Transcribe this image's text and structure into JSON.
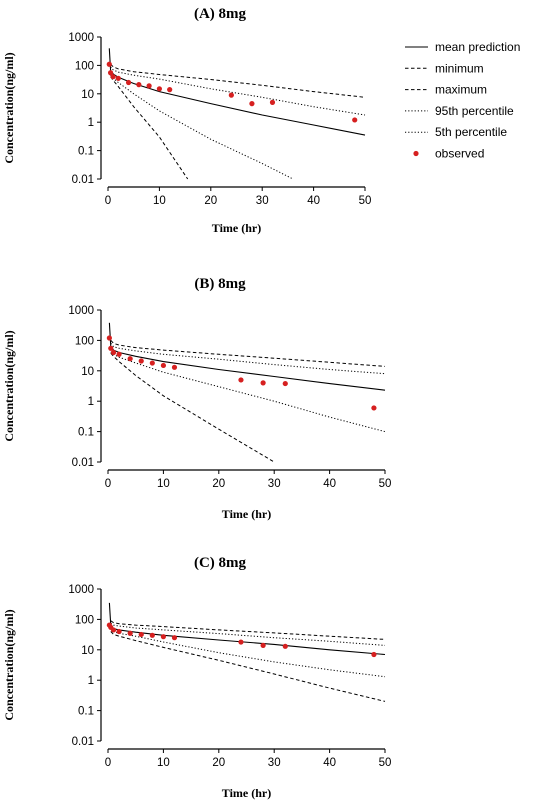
{
  "colors": {
    "observed": "#d62020",
    "line": "#000000"
  },
  "legend": {
    "items": [
      {
        "label": "mean prediction",
        "style": "solid"
      },
      {
        "label": "minimum",
        "style": "dashed"
      },
      {
        "label": "maximum",
        "style": "dashed"
      },
      {
        "label": "95th percentile",
        "style": "dotted"
      },
      {
        "label": "5th percentile",
        "style": "dotted"
      },
      {
        "label": "observed",
        "style": "marker"
      }
    ]
  },
  "chart_data": [
    {
      "type": "line",
      "title": "(A) 8mg",
      "xlabel": "Time (hr)",
      "ylabel": "Concentration(ng/ml)",
      "xlim": [
        0,
        50
      ],
      "ylim": [
        0.01,
        1000
      ],
      "yscale": "log",
      "x_ticks": [
        "0",
        "10",
        "20",
        "30",
        "40",
        "50"
      ],
      "y_ticks": [
        "1000",
        "100",
        "10",
        "1",
        "0.1",
        "0.01"
      ],
      "legend_position": "right",
      "series": [
        {
          "name": "mean prediction",
          "style": "solid",
          "points": [
            [
              0.25,
              400
            ],
            [
              0.5,
              65
            ],
            [
              1,
              50
            ],
            [
              2,
              38
            ],
            [
              5,
              23
            ],
            [
              10,
              12
            ],
            [
              20,
              4.5
            ],
            [
              30,
              1.8
            ],
            [
              40,
              0.8
            ],
            [
              50,
              0.35
            ]
          ]
        },
        {
          "name": "minimum",
          "style": "dashed",
          "points": [
            [
              0.5,
              40
            ],
            [
              1,
              30
            ],
            [
              2,
              18
            ],
            [
              5,
              3.5
            ],
            [
              10,
              0.3
            ],
            [
              15.5,
              0.01
            ]
          ]
        },
        {
          "name": "maximum",
          "style": "dashed",
          "points": [
            [
              0.5,
              110
            ],
            [
              1,
              90
            ],
            [
              2,
              75
            ],
            [
              5,
              60
            ],
            [
              10,
              48
            ],
            [
              20,
              32
            ],
            [
              30,
              20
            ],
            [
              40,
              12
            ],
            [
              50,
              7.5
            ]
          ]
        },
        {
          "name": "95th percentile",
          "style": "dotted",
          "points": [
            [
              0.5,
              90
            ],
            [
              1,
              70
            ],
            [
              2,
              58
            ],
            [
              5,
              45
            ],
            [
              10,
              33
            ],
            [
              20,
              15
            ],
            [
              30,
              7.5
            ],
            [
              40,
              3.5
            ],
            [
              50,
              1.8
            ]
          ]
        },
        {
          "name": "5th percentile",
          "style": "dotted",
          "points": [
            [
              0.5,
              45
            ],
            [
              1,
              35
            ],
            [
              2,
              25
            ],
            [
              5,
              10
            ],
            [
              10,
              2.5
            ],
            [
              20,
              0.25
            ],
            [
              30,
              0.035
            ],
            [
              36,
              0.01
            ]
          ]
        },
        {
          "name": "observed",
          "style": "marker",
          "points": [
            [
              0.25,
              110
            ],
            [
              0.5,
              55
            ],
            [
              1,
              40
            ],
            [
              2,
              35
            ],
            [
              4,
              25
            ],
            [
              6,
              21
            ],
            [
              8,
              19
            ],
            [
              10,
              15
            ],
            [
              12,
              14
            ],
            [
              24,
              9
            ],
            [
              28,
              4.5
            ],
            [
              32,
              5
            ],
            [
              48,
              1.2
            ]
          ]
        }
      ]
    },
    {
      "type": "line",
      "title": "(B) 8mg",
      "xlabel": "Time (hr)",
      "ylabel": "Concentration(ng/ml)",
      "xlim": [
        0,
        50
      ],
      "ylim": [
        0.01,
        1000
      ],
      "yscale": "log",
      "x_ticks": [
        "0",
        "10",
        "20",
        "30",
        "40",
        "50"
      ],
      "y_ticks": [
        "1000",
        "100",
        "10",
        "1",
        "0.1",
        "0.01"
      ],
      "series": [
        {
          "name": "mean prediction",
          "style": "solid",
          "points": [
            [
              0.25,
              380
            ],
            [
              0.5,
              60
            ],
            [
              1,
              48
            ],
            [
              2,
              40
            ],
            [
              5,
              30
            ],
            [
              10,
              20
            ],
            [
              20,
              11
            ],
            [
              30,
              6.5
            ],
            [
              40,
              3.8
            ],
            [
              50,
              2.3
            ]
          ]
        },
        {
          "name": "minimum",
          "style": "dashed",
          "points": [
            [
              0.5,
              38
            ],
            [
              1,
              30
            ],
            [
              2,
              20
            ],
            [
              5,
              7
            ],
            [
              10,
              1.5
            ],
            [
              20,
              0.12
            ],
            [
              30,
              0.01
            ]
          ]
        },
        {
          "name": "maximum",
          "style": "dashed",
          "points": [
            [
              0.5,
              100
            ],
            [
              1,
              80
            ],
            [
              2,
              70
            ],
            [
              5,
              58
            ],
            [
              10,
              48
            ],
            [
              20,
              35
            ],
            [
              30,
              26
            ],
            [
              40,
              19
            ],
            [
              50,
              14
            ]
          ]
        },
        {
          "name": "95th percentile",
          "style": "dotted",
          "points": [
            [
              0.5,
              80
            ],
            [
              1,
              62
            ],
            [
              2,
              55
            ],
            [
              5,
              45
            ],
            [
              10,
              35
            ],
            [
              20,
              24
            ],
            [
              30,
              16
            ],
            [
              40,
              11
            ],
            [
              50,
              8
            ]
          ]
        },
        {
          "name": "5th percentile",
          "style": "dotted",
          "points": [
            [
              0.5,
              42
            ],
            [
              1,
              35
            ],
            [
              2,
              28
            ],
            [
              5,
              18
            ],
            [
              10,
              9
            ],
            [
              20,
              3
            ],
            [
              30,
              1
            ],
            [
              40,
              0.3
            ],
            [
              50,
              0.1
            ]
          ]
        },
        {
          "name": "observed",
          "style": "marker",
          "points": [
            [
              0.25,
              120
            ],
            [
              0.5,
              55
            ],
            [
              1,
              40
            ],
            [
              2,
              35
            ],
            [
              4,
              25
            ],
            [
              6,
              21
            ],
            [
              8,
              18
            ],
            [
              10,
              15
            ],
            [
              12,
              13
            ],
            [
              24,
              5
            ],
            [
              28,
              4
            ],
            [
              32,
              3.8
            ],
            [
              48,
              0.6
            ]
          ]
        }
      ]
    },
    {
      "type": "line",
      "title": "(C) 8mg",
      "xlabel": "Time (hr)",
      "ylabel": "Concentration(ng/ml)",
      "xlim": [
        0,
        50
      ],
      "ylim": [
        0.01,
        1000
      ],
      "yscale": "log",
      "x_ticks": [
        "0",
        "10",
        "20",
        "30",
        "40",
        "50"
      ],
      "y_ticks": [
        "1000",
        "100",
        "10",
        "1",
        "0.1",
        "0.01"
      ],
      "series": [
        {
          "name": "mean prediction",
          "style": "solid",
          "points": [
            [
              0.25,
              350
            ],
            [
              0.5,
              60
            ],
            [
              1,
              50
            ],
            [
              2,
              45
            ],
            [
              5,
              38
            ],
            [
              10,
              30
            ],
            [
              20,
              21
            ],
            [
              30,
              15
            ],
            [
              40,
              10
            ],
            [
              50,
              7
            ]
          ]
        },
        {
          "name": "minimum",
          "style": "dashed",
          "points": [
            [
              0.5,
              40
            ],
            [
              1,
              32
            ],
            [
              2,
              28
            ],
            [
              5,
              20
            ],
            [
              10,
              12
            ],
            [
              20,
              4.5
            ],
            [
              30,
              1.6
            ],
            [
              40,
              0.55
            ],
            [
              50,
              0.2
            ]
          ]
        },
        {
          "name": "maximum",
          "style": "dashed",
          "points": [
            [
              0.5,
              90
            ],
            [
              1,
              78
            ],
            [
              2,
              72
            ],
            [
              5,
              65
            ],
            [
              10,
              58
            ],
            [
              20,
              45
            ],
            [
              30,
              36
            ],
            [
              40,
              28
            ],
            [
              50,
              22
            ]
          ]
        },
        {
          "name": "95th percentile",
          "style": "dotted",
          "points": [
            [
              0.5,
              75
            ],
            [
              1,
              65
            ],
            [
              2,
              60
            ],
            [
              5,
              52
            ],
            [
              10,
              45
            ],
            [
              20,
              34
            ],
            [
              30,
              25
            ],
            [
              40,
              19
            ],
            [
              50,
              14
            ]
          ]
        },
        {
          "name": "5th percentile",
          "style": "dotted",
          "points": [
            [
              0.5,
              48
            ],
            [
              1,
              40
            ],
            [
              2,
              35
            ],
            [
              5,
              28
            ],
            [
              10,
              18
            ],
            [
              20,
              8
            ],
            [
              30,
              4
            ],
            [
              40,
              2.2
            ],
            [
              50,
              1.3
            ]
          ]
        },
        {
          "name": "observed",
          "style": "marker",
          "points": [
            [
              0.25,
              65
            ],
            [
              0.5,
              55
            ],
            [
              1,
              45
            ],
            [
              2,
              40
            ],
            [
              4,
              35
            ],
            [
              6,
              32
            ],
            [
              8,
              30
            ],
            [
              10,
              27
            ],
            [
              12,
              25
            ],
            [
              24,
              18
            ],
            [
              28,
              14
            ],
            [
              32,
              13
            ],
            [
              48,
              7
            ]
          ]
        }
      ]
    }
  ]
}
